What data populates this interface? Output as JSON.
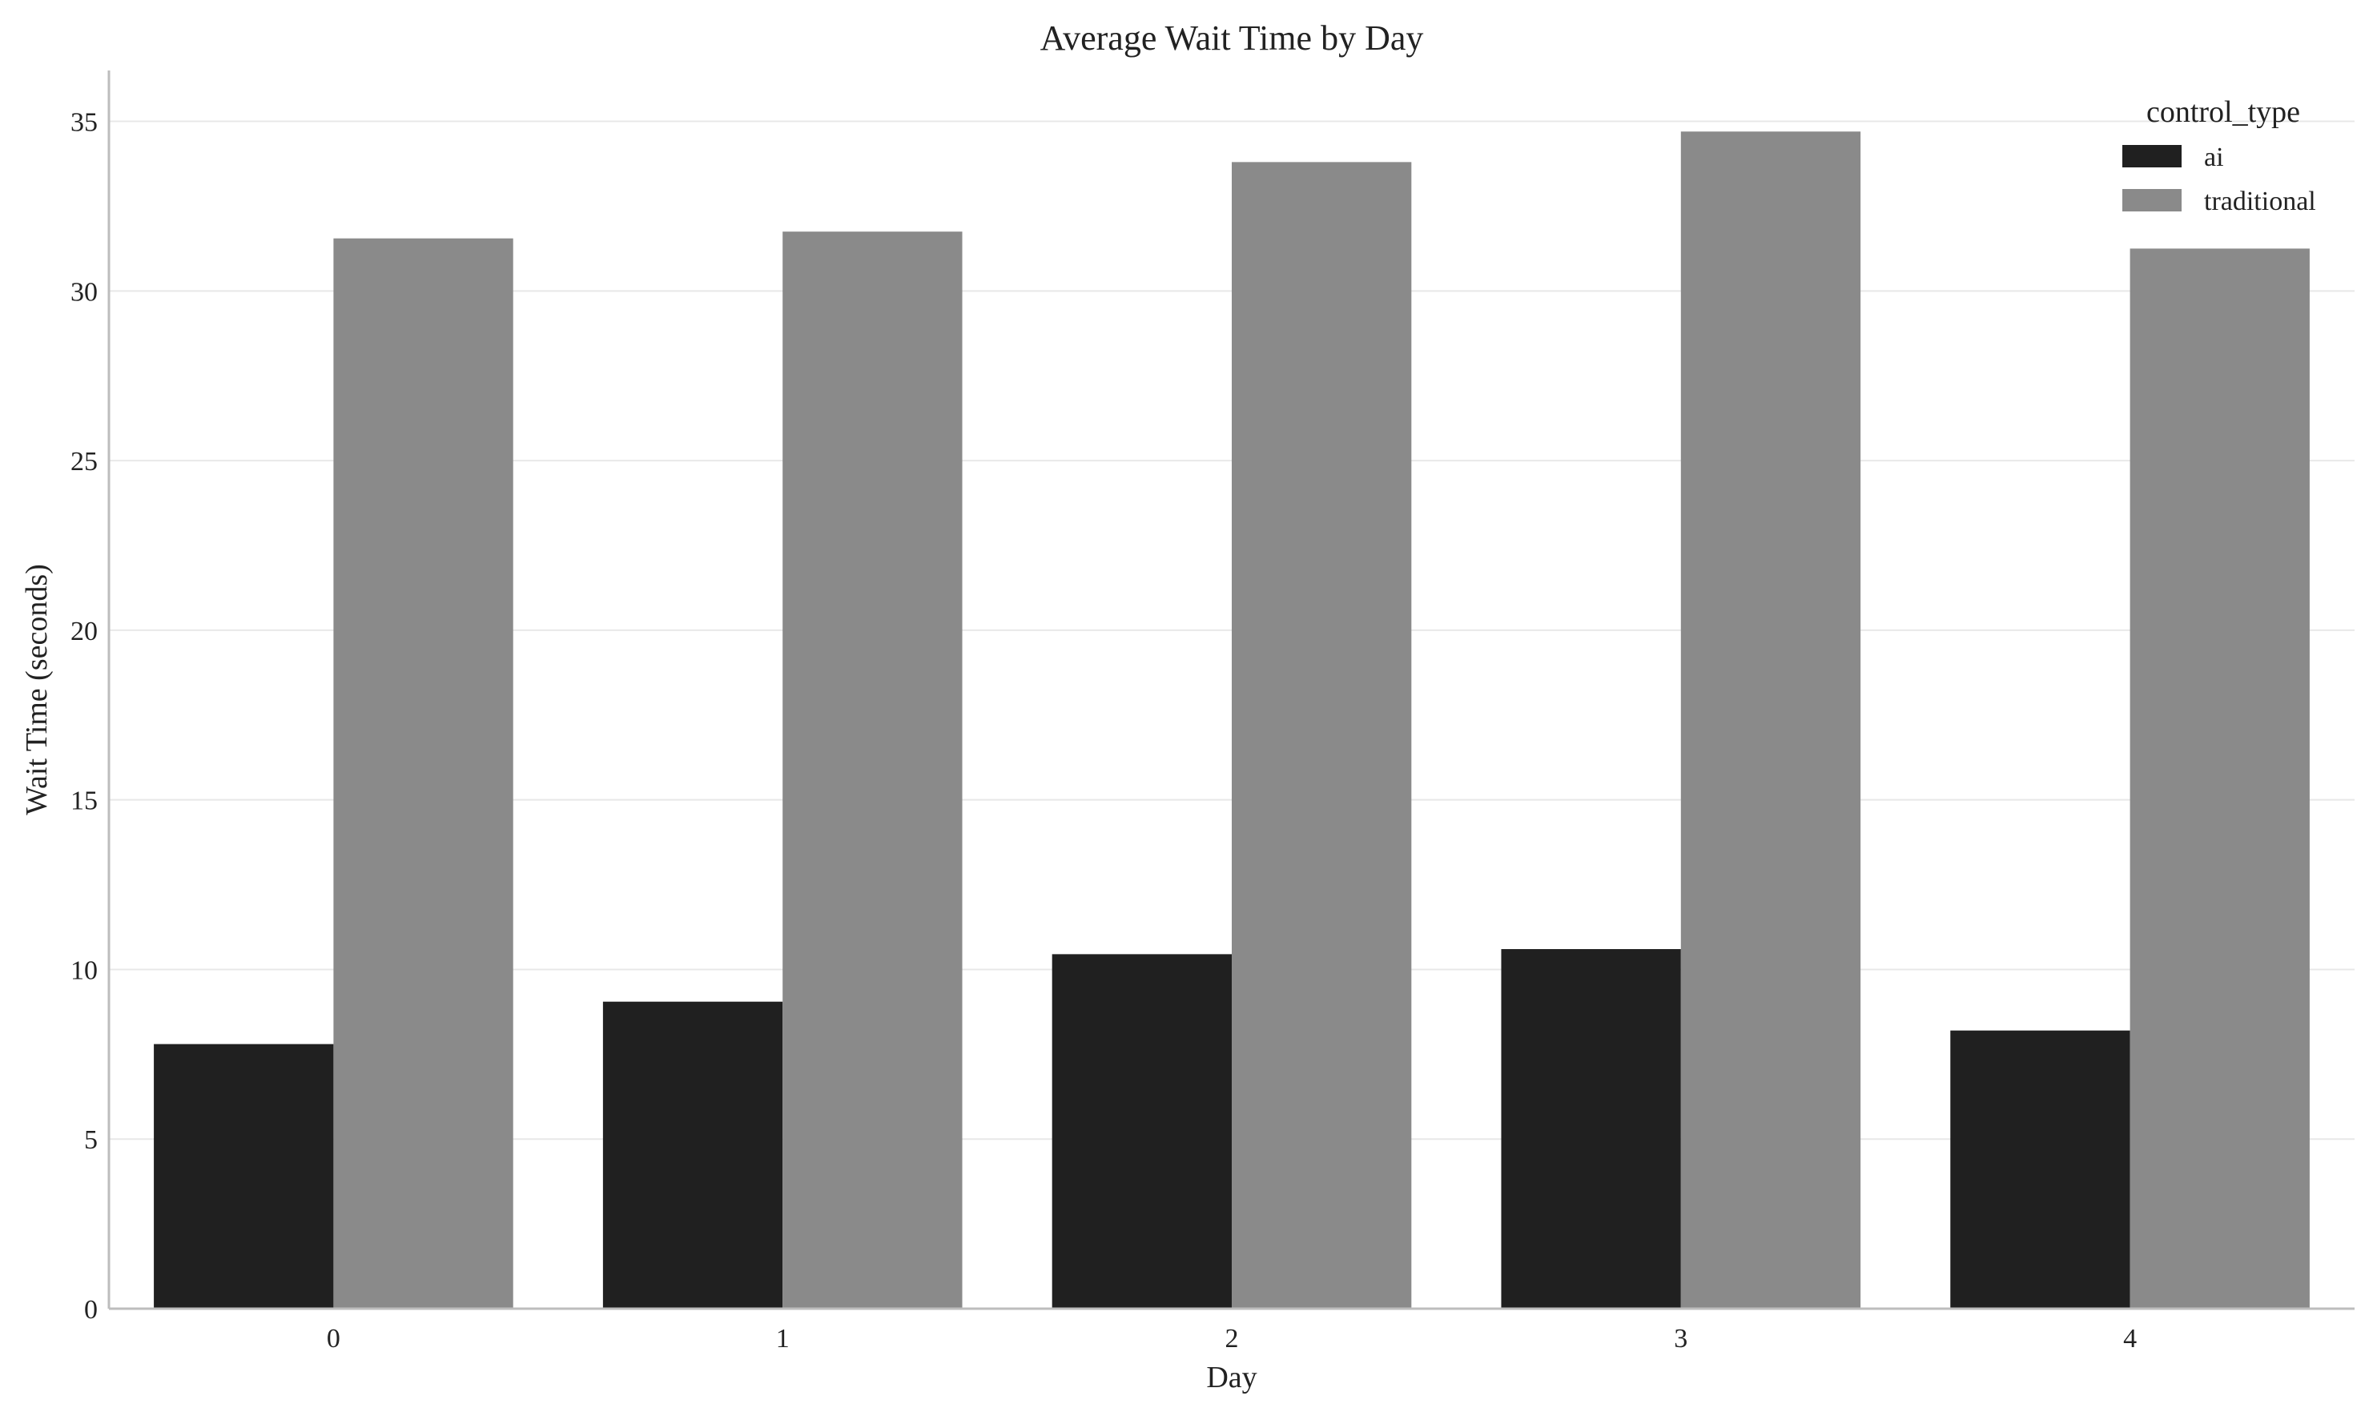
{
  "chart_data": {
    "type": "bar",
    "title": "Average Wait Time by Day",
    "xlabel": "Day",
    "ylabel": "Wait Time (seconds)",
    "categories": [
      "0",
      "1",
      "2",
      "3",
      "4"
    ],
    "series": [
      {
        "name": "ai",
        "color": "#202020",
        "values": [
          7.8,
          9.05,
          10.45,
          10.6,
          8.2
        ]
      },
      {
        "name": "traditional",
        "color": "#8a8a8a",
        "values": [
          31.55,
          31.75,
          33.8,
          34.7,
          31.25
        ]
      }
    ],
    "ylim": [
      0,
      36.5
    ],
    "yticks": [
      0,
      5,
      10,
      15,
      20,
      25,
      30,
      35
    ],
    "legend": {
      "title": "control_type",
      "position": "top-right"
    },
    "grid": "horizontal"
  }
}
